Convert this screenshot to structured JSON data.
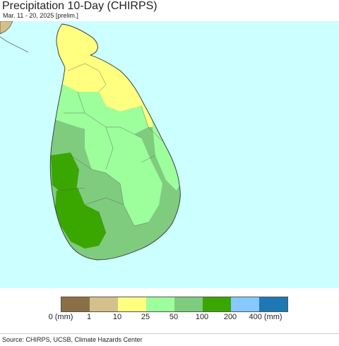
{
  "title": "Precipitation 10-Day (CHIRPS)",
  "subtitle": "Mar. 11 - 20, 2025 [prelim.]",
  "legend": {
    "colors": [
      "#8b6f47",
      "#d4c08a",
      "#ffff80",
      "#9cff9c",
      "#7fcc7f",
      "#3aa600",
      "#87c8ff",
      "#1e78b4"
    ],
    "labels": [
      "0 (mm)",
      "1",
      "10",
      "25",
      "50",
      "100",
      "200",
      "400 (mm)"
    ]
  },
  "map": {
    "ocean_color": "#ccffff",
    "region": "Sri Lanka",
    "zones": [
      {
        "name": "north",
        "class": "10-25",
        "color": "#ffff80"
      },
      {
        "name": "east-coast",
        "class": "25-50",
        "color": "#9cff9c"
      },
      {
        "name": "central",
        "class": "25-50",
        "color": "#9cff9c"
      },
      {
        "name": "west",
        "class": "50-100",
        "color": "#7fcc7f"
      },
      {
        "name": "southwest",
        "class": "100-200",
        "color": "#3aa600"
      }
    ]
  },
  "source": "Source: CHIRPS, UCSB, Climate Hazards Center"
}
